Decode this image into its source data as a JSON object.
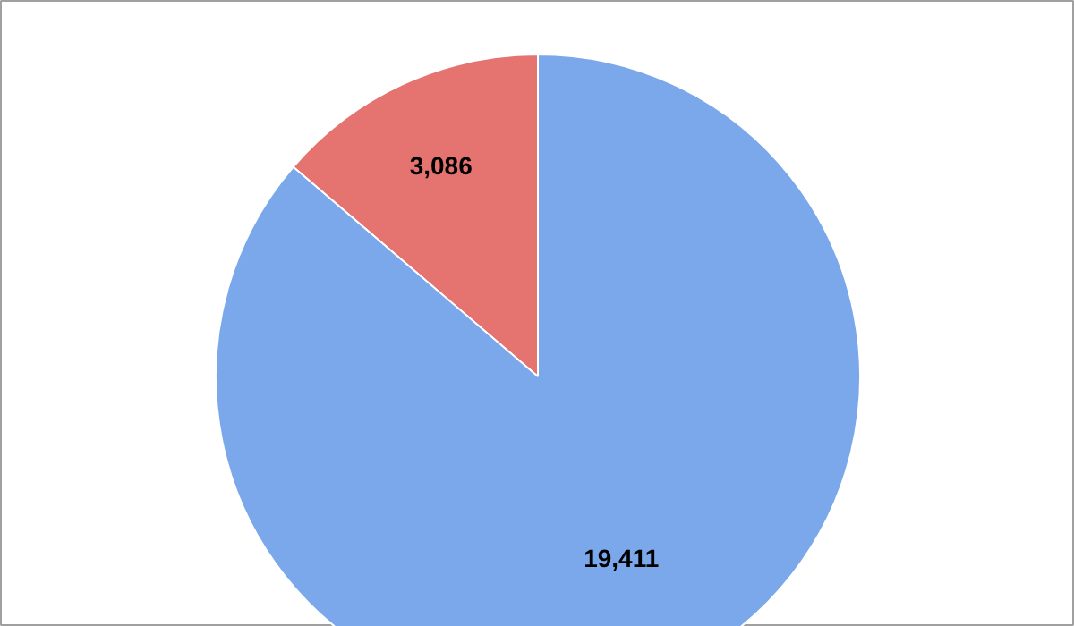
{
  "chart_data": {
    "type": "pie",
    "categories": [
      null,
      null
    ],
    "values": [
      3086,
      19411
    ],
    "colors": [
      "#e57370",
      "#7ba7eb"
    ],
    "value_labels": [
      "3,086",
      "19,411"
    ]
  }
}
